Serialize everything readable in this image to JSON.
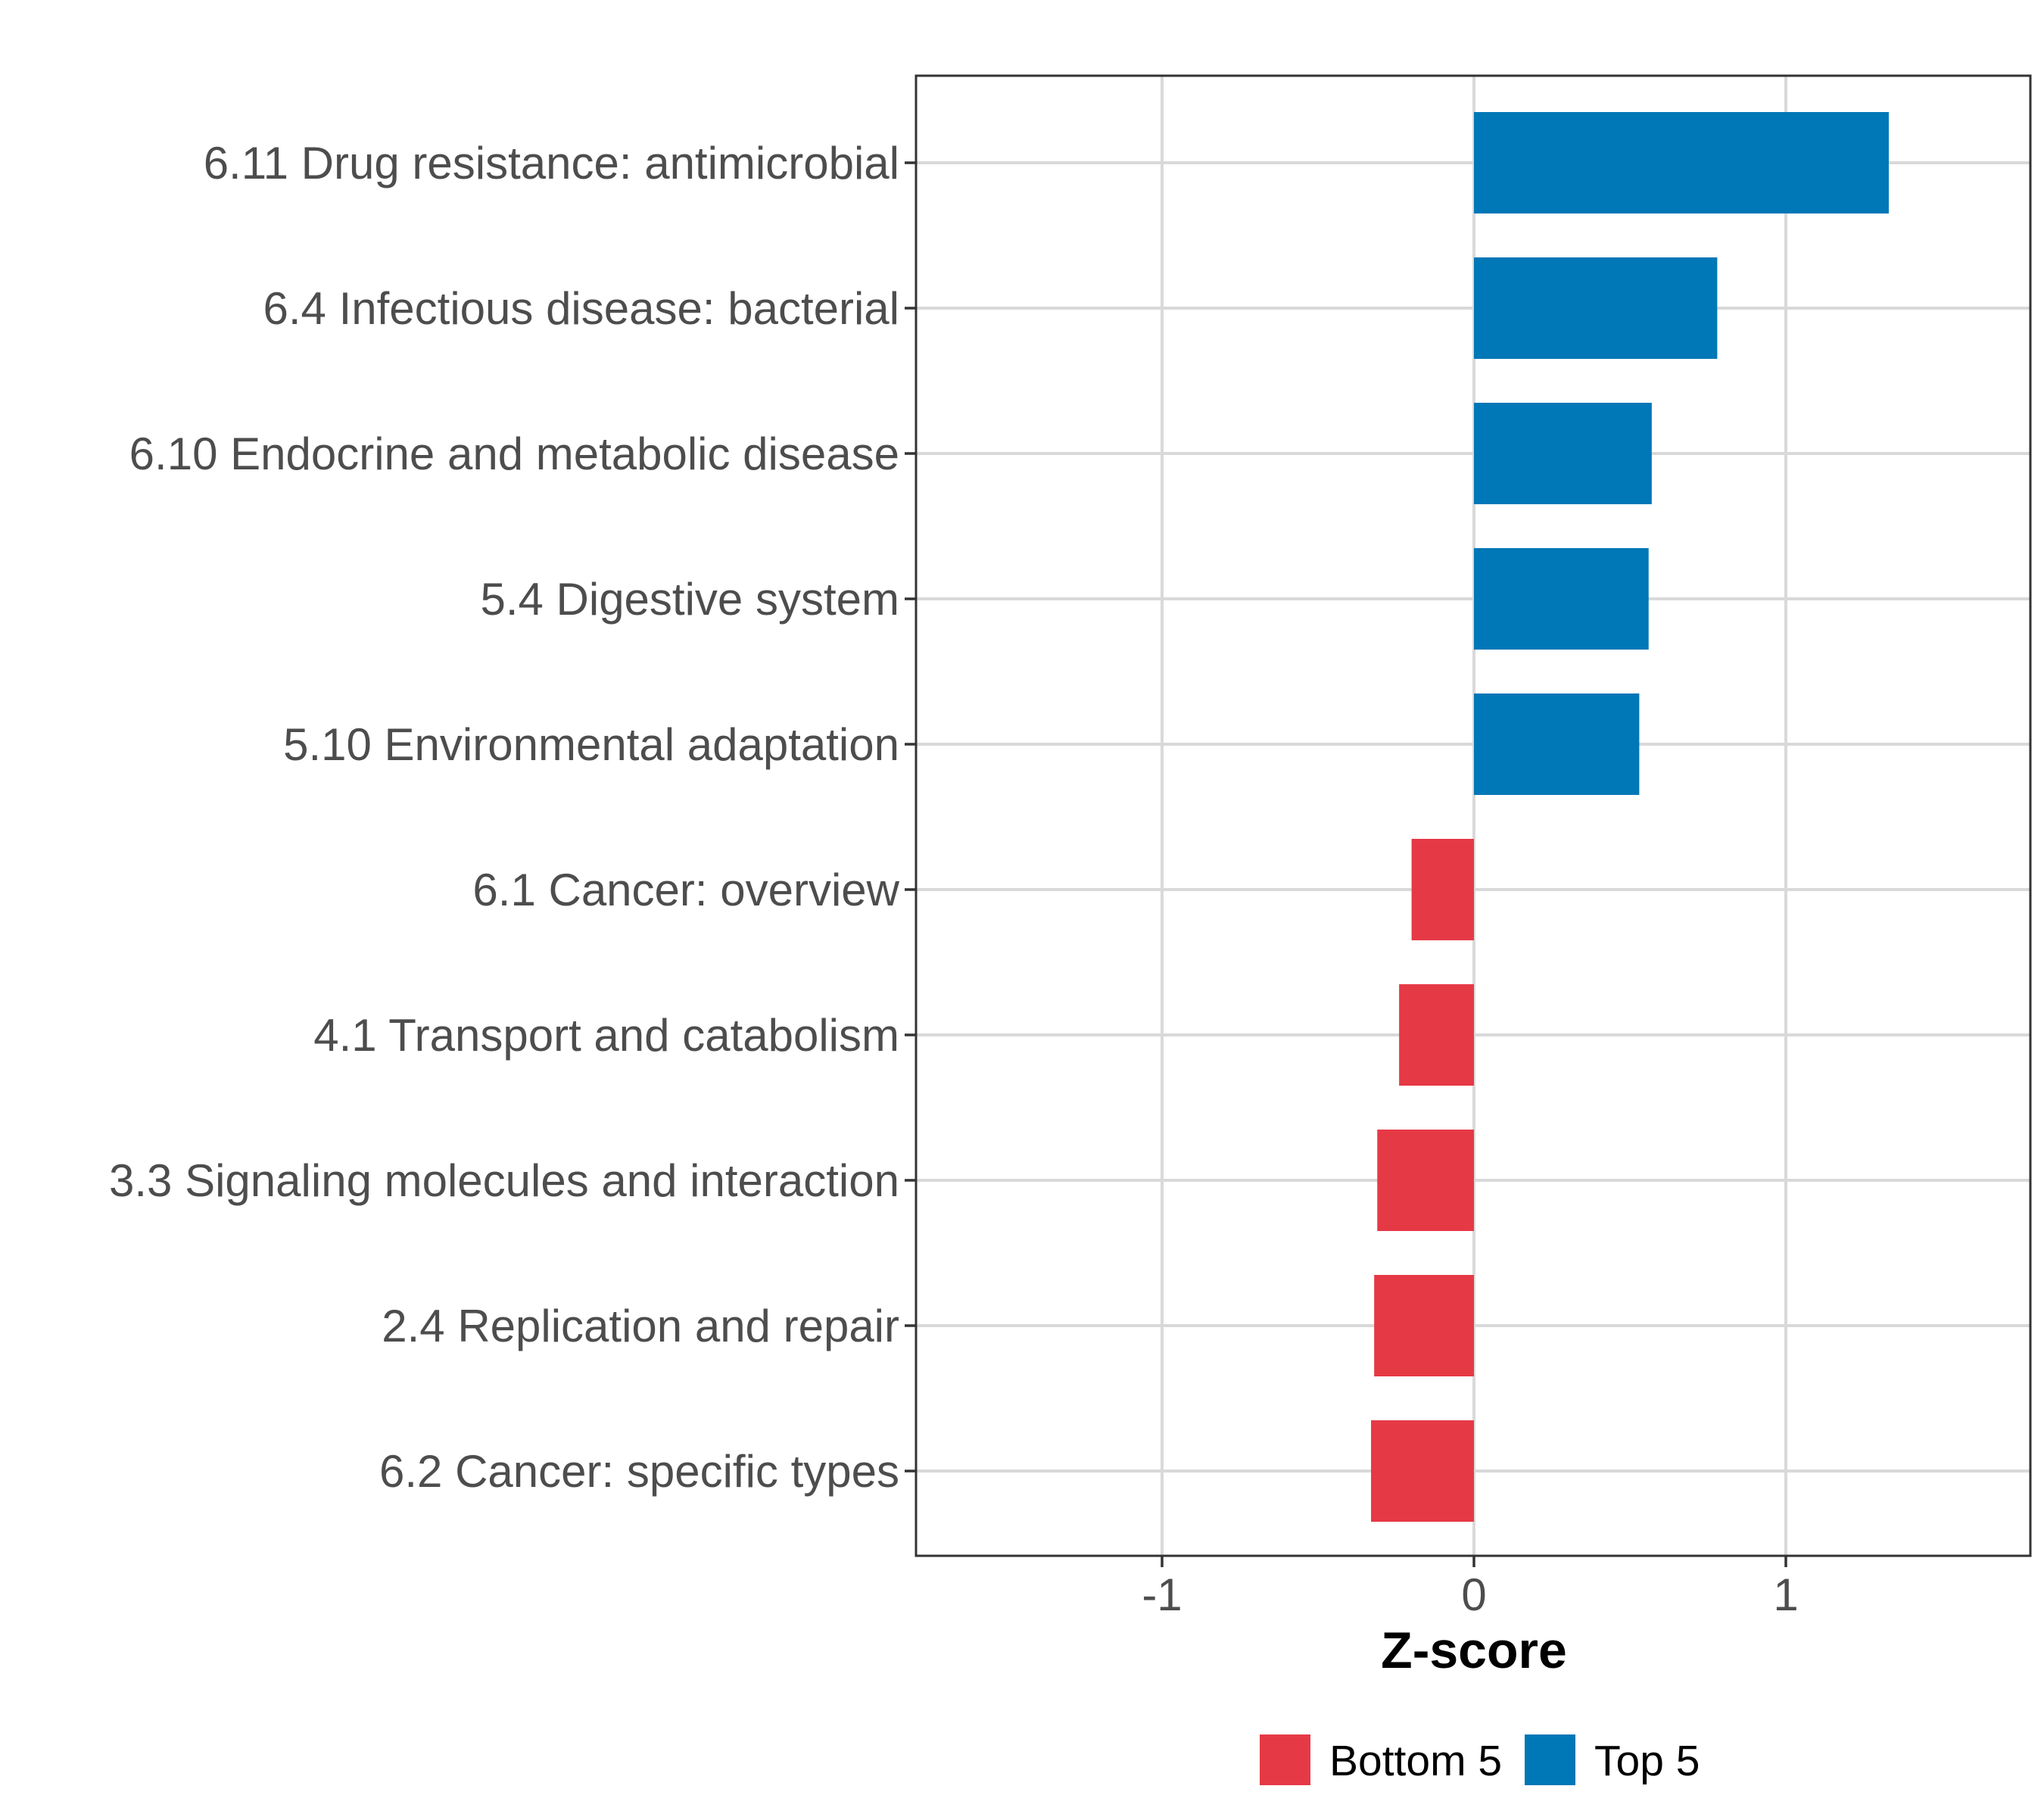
{
  "chart_data": {
    "type": "bar",
    "orientation": "horizontal",
    "xlabel": "Z-score",
    "ylabel": "",
    "xlim": [
      -1.78,
      1.78
    ],
    "x_ticks": [
      -1,
      0,
      1
    ],
    "x_tick_labels": [
      "-1",
      "0",
      "1"
    ],
    "grid": true,
    "legend_position": "bottom",
    "categories": [
      "6.11 Drug resistance: antimicrobial",
      "6.4 Infectious disease: bacterial",
      "6.10 Endocrine and metabolic disease",
      "5.4 Digestive system",
      "5.10 Environmental adaptation",
      "6.1 Cancer: overview",
      "4.1 Transport and catabolism",
      "3.3 Signaling molecules and interaction",
      "2.4 Replication and repair",
      "6.2 Cancer: specific types"
    ],
    "values": [
      1.33,
      0.78,
      0.57,
      0.56,
      0.53,
      -0.2,
      -0.24,
      -0.31,
      -0.32,
      -0.33
    ],
    "groups": [
      "Top 5",
      "Top 5",
      "Top 5",
      "Top 5",
      "Top 5",
      "Bottom 5",
      "Bottom 5",
      "Bottom 5",
      "Bottom 5",
      "Bottom 5"
    ],
    "legend": [
      {
        "name": "Bottom 5",
        "color": "#E63946"
      },
      {
        "name": "Top 5",
        "color": "#0077B6"
      }
    ]
  }
}
